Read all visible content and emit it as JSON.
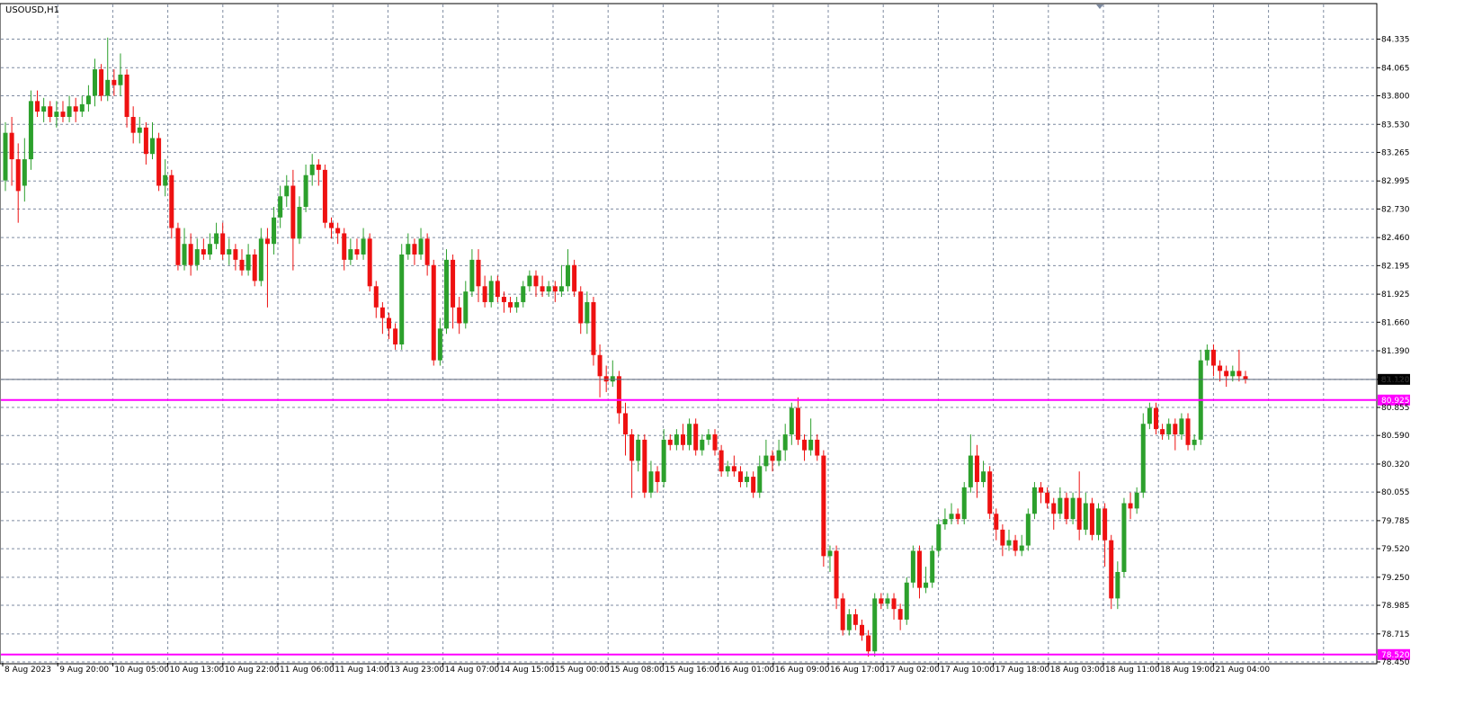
{
  "window": {
    "title": "USOUSD,H1"
  },
  "colors": {
    "bull": "#2ca02c",
    "bear": "#ee1111",
    "grid": "#7d8aa0",
    "level_line": "#ff00ff",
    "bid_line": "#5a6478",
    "label_text": "#ffffff"
  },
  "chart_data": {
    "type": "candlestick",
    "symbol": "USOUSD",
    "timeframe": "H1",
    "ylim": [
      78.45,
      84.45
    ],
    "y_ticks": [
      "84.335",
      "84.065",
      "83.800",
      "83.530",
      "83.265",
      "82.995",
      "82.730",
      "82.460",
      "82.195",
      "81.925",
      "81.660",
      "81.390",
      "81.120",
      "80.855",
      "80.590",
      "80.320",
      "80.055",
      "79.785",
      "79.520",
      "79.250",
      "78.985",
      "78.715",
      "78.450"
    ],
    "x_labels": [
      "8 Aug 2023",
      "9 Aug 20:00",
      "10 Aug 05:00",
      "10 Aug 13:00",
      "10 Aug 22:00",
      "11 Aug 06:00",
      "11 Aug 14:00",
      "13 Aug 23:00",
      "14 Aug 07:00",
      "14 Aug 15:00",
      "15 Aug 00:00",
      "15 Aug 08:00",
      "15 Aug 16:00",
      "16 Aug 01:00",
      "16 Aug 09:00",
      "16 Aug 17:00",
      "17 Aug 02:00",
      "17 Aug 10:00",
      "17 Aug 18:00",
      "18 Aug 03:00",
      "18 Aug 11:00",
      "18 Aug 19:00",
      "21 Aug 04:00"
    ],
    "current_price": {
      "value": 81.12,
      "label": "81.120"
    },
    "levels": [
      {
        "value": 80.925,
        "label": "80.925"
      },
      {
        "value": 78.52,
        "label": "78.520"
      }
    ],
    "candles": [
      [
        83.0,
        83.45,
        82.9,
        83.55
      ],
      [
        83.45,
        83.2,
        82.95,
        83.6
      ],
      [
        83.2,
        82.9,
        82.6,
        83.35
      ],
      [
        82.95,
        83.2,
        82.8,
        83.4
      ],
      [
        83.2,
        83.75,
        83.1,
        83.85
      ],
      [
        83.75,
        83.65,
        83.6,
        83.85
      ],
      [
        83.65,
        83.7,
        83.55,
        83.78
      ],
      [
        83.7,
        83.6,
        83.55,
        83.75
      ],
      [
        83.6,
        83.65,
        83.5,
        83.75
      ],
      [
        83.65,
        83.6,
        83.55,
        83.75
      ],
      [
        83.6,
        83.7,
        83.55,
        83.8
      ],
      [
        83.7,
        83.65,
        83.55,
        83.78
      ],
      [
        83.65,
        83.72,
        83.6,
        83.8
      ],
      [
        83.72,
        83.8,
        83.65,
        83.9
      ],
      [
        83.8,
        84.05,
        83.7,
        84.15
      ],
      [
        84.05,
        83.8,
        83.75,
        84.1
      ],
      [
        83.8,
        83.95,
        83.75,
        84.35
      ],
      [
        83.95,
        83.9,
        83.8,
        84.05
      ],
      [
        83.9,
        84.0,
        83.8,
        84.2
      ],
      [
        84.0,
        83.6,
        83.5,
        84.05
      ],
      [
        83.6,
        83.45,
        83.35,
        83.7
      ],
      [
        83.45,
        83.5,
        83.35,
        83.6
      ],
      [
        83.5,
        83.25,
        83.15,
        83.55
      ],
      [
        83.25,
        83.4,
        83.2,
        83.55
      ],
      [
        83.4,
        82.95,
        82.9,
        83.45
      ],
      [
        82.95,
        83.05,
        82.85,
        83.2
      ],
      [
        83.05,
        82.55,
        82.45,
        83.1
      ],
      [
        82.55,
        82.2,
        82.15,
        82.6
      ],
      [
        82.2,
        82.4,
        82.15,
        82.55
      ],
      [
        82.4,
        82.2,
        82.1,
        82.5
      ],
      [
        82.2,
        82.35,
        82.15,
        82.45
      ],
      [
        82.35,
        82.3,
        82.25,
        82.45
      ],
      [
        82.3,
        82.4,
        82.25,
        82.5
      ],
      [
        82.4,
        82.5,
        82.35,
        82.6
      ],
      [
        82.5,
        82.3,
        82.25,
        82.6
      ],
      [
        82.3,
        82.35,
        82.2,
        82.45
      ],
      [
        82.35,
        82.25,
        82.15,
        82.4
      ],
      [
        82.25,
        82.15,
        82.1,
        82.35
      ],
      [
        82.15,
        82.3,
        82.1,
        82.4
      ],
      [
        82.3,
        82.05,
        82.0,
        82.35
      ],
      [
        82.05,
        82.45,
        82.0,
        82.55
      ],
      [
        82.45,
        82.4,
        81.8,
        82.55
      ],
      [
        82.4,
        82.65,
        82.3,
        82.75
      ],
      [
        82.65,
        82.85,
        82.55,
        82.95
      ],
      [
        82.85,
        82.95,
        82.75,
        83.05
      ],
      [
        82.95,
        82.45,
        82.15,
        83.1
      ],
      [
        82.45,
        82.75,
        82.4,
        82.85
      ],
      [
        82.75,
        83.05,
        82.7,
        83.15
      ],
      [
        83.05,
        83.15,
        82.95,
        83.25
      ],
      [
        83.15,
        83.1,
        82.95,
        83.2
      ],
      [
        83.1,
        82.6,
        82.55,
        83.15
      ],
      [
        82.6,
        82.55,
        82.45,
        82.65
      ],
      [
        82.55,
        82.5,
        82.4,
        82.6
      ],
      [
        82.5,
        82.25,
        82.15,
        82.55
      ],
      [
        82.25,
        82.35,
        82.2,
        82.45
      ],
      [
        82.35,
        82.3,
        82.25,
        82.45
      ],
      [
        82.3,
        82.45,
        82.25,
        82.55
      ],
      [
        82.45,
        82.0,
        81.95,
        82.5
      ],
      [
        82.0,
        81.8,
        81.7,
        82.05
      ],
      [
        81.8,
        81.7,
        81.55,
        81.85
      ],
      [
        81.7,
        81.6,
        81.5,
        81.75
      ],
      [
        81.6,
        81.45,
        81.4,
        81.65
      ],
      [
        81.45,
        82.3,
        81.4,
        82.4
      ],
      [
        82.3,
        82.4,
        82.25,
        82.5
      ],
      [
        82.4,
        82.3,
        82.2,
        82.45
      ],
      [
        82.3,
        82.45,
        82.25,
        82.55
      ],
      [
        82.45,
        82.2,
        82.1,
        82.5
      ],
      [
        82.2,
        81.3,
        81.25,
        82.25
      ],
      [
        81.3,
        81.6,
        81.25,
        81.7
      ],
      [
        81.6,
        82.25,
        81.55,
        82.35
      ],
      [
        82.25,
        81.8,
        81.6,
        82.3
      ],
      [
        81.8,
        81.65,
        81.55,
        81.9
      ],
      [
        81.65,
        81.95,
        81.6,
        82.05
      ],
      [
        81.95,
        82.25,
        81.9,
        82.35
      ],
      [
        82.25,
        82.0,
        81.85,
        82.35
      ],
      [
        82.0,
        81.85,
        81.8,
        82.1
      ],
      [
        81.85,
        82.05,
        81.8,
        82.1
      ],
      [
        82.05,
        81.9,
        81.85,
        82.1
      ],
      [
        81.9,
        81.85,
        81.75,
        81.95
      ],
      [
        81.85,
        81.8,
        81.75,
        81.9
      ],
      [
        81.8,
        81.85,
        81.75,
        81.9
      ],
      [
        81.85,
        82.0,
        81.8,
        82.05
      ],
      [
        82.0,
        82.1,
        81.95,
        82.15
      ],
      [
        82.1,
        82.0,
        81.9,
        82.15
      ],
      [
        82.0,
        81.95,
        81.9,
        82.1
      ],
      [
        81.95,
        82.0,
        81.9,
        82.05
      ],
      [
        82.0,
        81.95,
        81.85,
        82.05
      ],
      [
        81.95,
        82.0,
        81.9,
        82.2
      ],
      [
        82.0,
        82.2,
        81.95,
        82.35
      ],
      [
        82.2,
        81.95,
        81.9,
        82.25
      ],
      [
        81.95,
        81.65,
        81.55,
        82.0
      ],
      [
        81.65,
        81.85,
        81.55,
        81.95
      ],
      [
        81.85,
        81.35,
        81.25,
        81.9
      ],
      [
        81.35,
        81.15,
        80.95,
        81.45
      ],
      [
        81.15,
        81.1,
        81.0,
        81.25
      ],
      [
        81.1,
        81.15,
        81.05,
        81.3
      ],
      [
        81.15,
        80.8,
        80.7,
        81.2
      ],
      [
        80.8,
        80.6,
        80.4,
        80.9
      ],
      [
        80.6,
        80.35,
        80.0,
        80.65
      ],
      [
        80.35,
        80.55,
        80.25,
        80.6
      ],
      [
        80.55,
        80.05,
        80.0,
        80.6
      ],
      [
        80.05,
        80.25,
        80.0,
        80.35
      ],
      [
        80.25,
        80.15,
        80.05,
        80.3
      ],
      [
        80.15,
        80.55,
        80.1,
        80.65
      ],
      [
        80.55,
        80.5,
        80.45,
        80.6
      ],
      [
        80.5,
        80.6,
        80.45,
        80.65
      ],
      [
        80.6,
        80.5,
        80.45,
        80.7
      ],
      [
        80.5,
        80.7,
        80.45,
        80.75
      ],
      [
        80.7,
        80.45,
        80.4,
        80.75
      ],
      [
        80.45,
        80.55,
        80.4,
        80.6
      ],
      [
        80.55,
        80.6,
        80.5,
        80.65
      ],
      [
        80.6,
        80.45,
        80.4,
        80.65
      ],
      [
        80.45,
        80.25,
        80.2,
        80.5
      ],
      [
        80.25,
        80.3,
        80.2,
        80.35
      ],
      [
        80.3,
        80.25,
        80.2,
        80.4
      ],
      [
        80.25,
        80.15,
        80.1,
        80.3
      ],
      [
        80.15,
        80.2,
        80.1,
        80.25
      ],
      [
        80.2,
        80.05,
        80.0,
        80.25
      ],
      [
        80.05,
        80.3,
        80.0,
        80.4
      ],
      [
        80.3,
        80.4,
        80.25,
        80.55
      ],
      [
        80.4,
        80.35,
        80.25,
        80.45
      ],
      [
        80.35,
        80.45,
        80.3,
        80.55
      ],
      [
        80.45,
        80.6,
        80.35,
        80.7
      ],
      [
        80.6,
        80.85,
        80.5,
        80.9
      ],
      [
        80.85,
        80.55,
        80.5,
        80.95
      ],
      [
        80.55,
        80.45,
        80.35,
        80.6
      ],
      [
        80.45,
        80.55,
        80.4,
        80.75
      ],
      [
        80.55,
        80.4,
        80.35,
        80.6
      ],
      [
        80.4,
        79.45,
        79.35,
        80.45
      ],
      [
        79.45,
        79.5,
        79.3,
        79.55
      ],
      [
        79.5,
        79.05,
        78.95,
        79.55
      ],
      [
        79.05,
        78.75,
        78.7,
        79.1
      ],
      [
        78.75,
        78.9,
        78.7,
        78.95
      ],
      [
        78.9,
        78.8,
        78.75,
        78.95
      ],
      [
        78.8,
        78.7,
        78.65,
        78.85
      ],
      [
        78.7,
        78.55,
        78.5,
        78.75
      ],
      [
        78.55,
        79.05,
        78.5,
        79.1
      ],
      [
        79.05,
        79.0,
        78.95,
        79.1
      ],
      [
        79.0,
        79.05,
        78.95,
        79.1
      ],
      [
        79.05,
        78.95,
        78.85,
        79.1
      ],
      [
        78.95,
        78.85,
        78.75,
        79.0
      ],
      [
        78.85,
        79.2,
        78.8,
        79.25
      ],
      [
        79.2,
        79.5,
        79.15,
        79.55
      ],
      [
        79.5,
        79.15,
        79.05,
        79.55
      ],
      [
        79.15,
        79.2,
        79.1,
        79.35
      ],
      [
        79.2,
        79.5,
        79.15,
        79.55
      ],
      [
        79.5,
        79.75,
        79.45,
        79.8
      ],
      [
        79.75,
        79.8,
        79.7,
        79.9
      ],
      [
        79.8,
        79.85,
        79.75,
        79.95
      ],
      [
        79.85,
        79.8,
        79.75,
        79.9
      ],
      [
        79.8,
        80.1,
        79.75,
        80.15
      ],
      [
        80.1,
        80.4,
        80.05,
        80.6
      ],
      [
        80.4,
        80.15,
        80.0,
        80.5
      ],
      [
        80.15,
        80.25,
        80.1,
        80.35
      ],
      [
        80.25,
        79.85,
        79.8,
        80.3
      ],
      [
        79.85,
        79.7,
        79.6,
        79.9
      ],
      [
        79.7,
        79.55,
        79.45,
        79.75
      ],
      [
        79.55,
        79.6,
        79.5,
        79.7
      ],
      [
        79.6,
        79.5,
        79.45,
        79.65
      ],
      [
        79.5,
        79.55,
        79.45,
        79.65
      ],
      [
        79.55,
        79.85,
        79.5,
        79.9
      ],
      [
        79.85,
        80.1,
        79.8,
        80.15
      ],
      [
        80.1,
        80.05,
        79.95,
        80.15
      ],
      [
        80.05,
        79.95,
        79.9,
        80.1
      ],
      [
        79.95,
        79.85,
        79.7,
        80.0
      ],
      [
        79.85,
        80.0,
        79.8,
        80.1
      ],
      [
        80.0,
        79.8,
        79.75,
        80.05
      ],
      [
        79.8,
        80.0,
        79.75,
        80.05
      ],
      [
        80.0,
        79.7,
        79.6,
        80.25
      ],
      [
        79.7,
        79.95,
        79.65,
        80.05
      ],
      [
        79.95,
        79.65,
        79.6,
        80.0
      ],
      [
        79.65,
        79.9,
        79.6,
        79.95
      ],
      [
        79.9,
        79.6,
        79.35,
        79.95
      ],
      [
        79.6,
        79.05,
        78.95,
        79.65
      ],
      [
        79.05,
        79.3,
        78.95,
        79.4
      ],
      [
        79.3,
        79.95,
        79.25,
        80.0
      ],
      [
        79.95,
        79.9,
        79.8,
        80.05
      ],
      [
        79.9,
        80.05,
        79.85,
        80.1
      ],
      [
        80.05,
        80.7,
        80.0,
        80.8
      ],
      [
        80.7,
        80.85,
        80.65,
        80.9
      ],
      [
        80.85,
        80.65,
        80.6,
        80.9
      ],
      [
        80.65,
        80.6,
        80.55,
        80.7
      ],
      [
        80.6,
        80.7,
        80.55,
        80.75
      ],
      [
        80.7,
        80.6,
        80.45,
        80.75
      ],
      [
        80.6,
        80.75,
        80.55,
        80.8
      ],
      [
        80.75,
        80.5,
        80.45,
        80.8
      ],
      [
        80.5,
        80.55,
        80.45,
        80.6
      ],
      [
        80.55,
        81.3,
        80.5,
        81.4
      ],
      [
        81.3,
        81.4,
        81.25,
        81.45
      ],
      [
        81.4,
        81.25,
        81.15,
        81.45
      ],
      [
        81.25,
        81.2,
        81.1,
        81.3
      ],
      [
        81.2,
        81.15,
        81.05,
        81.25
      ],
      [
        81.15,
        81.2,
        81.1,
        81.25
      ],
      [
        81.2,
        81.15,
        81.1,
        81.4
      ],
      [
        81.15,
        81.12,
        81.08,
        81.2
      ]
    ]
  }
}
